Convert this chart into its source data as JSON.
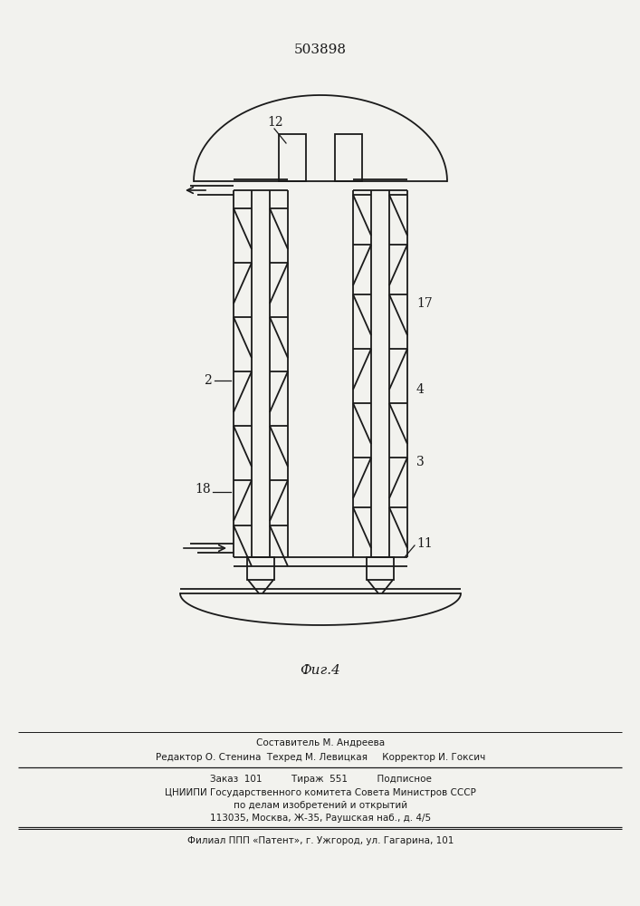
{
  "patent_number": "503898",
  "fig_label": "Фиг.4",
  "background_color": "#f2f2ee",
  "line_color": "#1a1a1a",
  "footer_lines": [
    "Составитель М. Андреева",
    "Редактор О. Стенина  Техред М. Левицкая     Корректор И. Гоксич",
    "Заказ  101          Тираж  551          Подписное",
    "ЦНИИПИ Государственного комитета Совета Министров СССР",
    "по делам изобретений и открытий",
    "113035, Москва, Ж-35, Раушская наб., д. 4/5",
    "Филиал ППП «Патент», г. Ужгород, ул. Гагарина, 101"
  ]
}
